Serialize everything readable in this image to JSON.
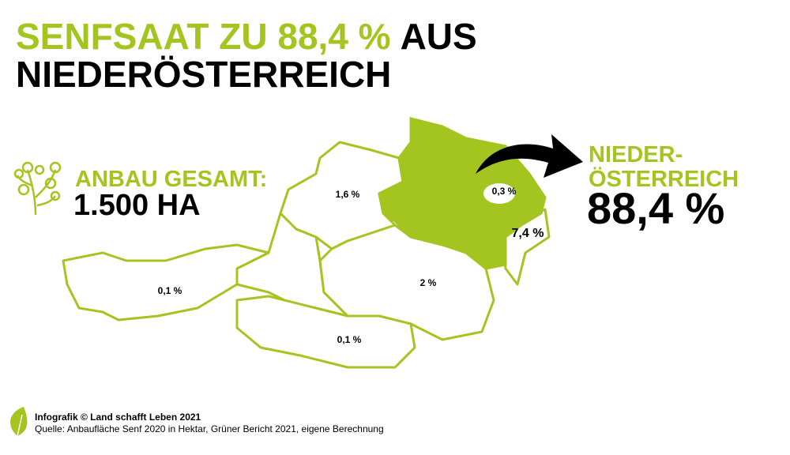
{
  "title": {
    "highlight": "SENFSAAT ZU 88,4 %",
    "rest": "AUS",
    "line2": "NIEDERÖSTERREICH"
  },
  "total": {
    "label": "ANBAU GESAMT:",
    "value": "1.500 HA"
  },
  "highlight": {
    "label_line1": "NIEDER-",
    "label_line2": "ÖSTERREICH",
    "value": "88,4 %"
  },
  "regions": [
    {
      "label": "1,6 %"
    },
    {
      "label": "0,3 %"
    },
    {
      "label": "7,4 %"
    },
    {
      "label": "2 %"
    },
    {
      "label": "0,1 %"
    },
    {
      "label": "0,1 %"
    }
  ],
  "footer": {
    "credit": "Infografik © Land schafft Leben 2021",
    "source": "Quelle: Anbaufläche Senf 2020 in Hektar, Grüner Bericht 2021, eigene Berechnung"
  }
}
